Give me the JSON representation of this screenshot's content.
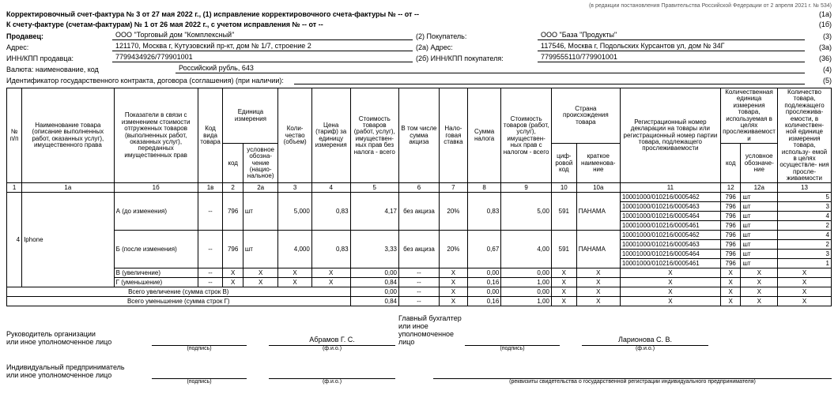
{
  "topnote": "(в редакции постановления Правительства Российской Федерации от 2 апреля 2021 г. № 534)",
  "title_line1_a": "Корректировочный счет-фактура № 3 от 27 мая 2022 г., (1) исправление корректировочного счета-фактуры № -- от --",
  "title_line1_num": "(1а)",
  "title_line2_a": "К счету-фактуре (счетам-фактурам) № 1 от 26 мая 2022 г., с учетом исправления № -- от --",
  "title_line2_num": "(1б)",
  "seller": {
    "label": "Продавец:",
    "name": "ООО \"Торговый дом \"Комплексный\"",
    "addr_label": "Адрес:",
    "addr": "121170, Москва г, Кутузовский пр-кт, дом № 1/7, строение 2",
    "inn_label": "ИНН/КПП продавца:",
    "inn": "7799434926/779901001"
  },
  "buyer": {
    "label": "(2)  Покупатель:",
    "name": "ООО \"База \"Продукты\"",
    "addr_label": "(2а) Адрес:",
    "addr": "117546, Москва г, Подольских Курсантов ул, дом № 34Г",
    "inn_label": "(2б) ИНН/КПП покупателя:",
    "inn": "7799555110/779901001"
  },
  "nums": {
    "seller": "(2)",
    "seller_addr": "(2а)",
    "seller_inn": "(2б)",
    "n3": "(3)",
    "n3a": "(3а)",
    "n36": "(36)",
    "n4": "(4)",
    "n5": "(5)"
  },
  "currency": {
    "label": "Валюта: наименование, код",
    "val": "Российский рубль, 643"
  },
  "contract": {
    "label": "Идентификатор государственного контракта, договора (соглашения) (при наличии):",
    "val": ""
  },
  "head": {
    "c1": "№\nп/п",
    "c1a": "Наименование товара (описание выполненных работ, оказанных услуг), имущественного права",
    "c1b": "Показатели в связи с изменением стоимости отгруженных товаров (выполненных работ, оказанных услуг), переданных имущественных прав",
    "c1v": "Код вида товара",
    "unit_grp": "Единица измерения",
    "c2": "код",
    "c2a": "условное обозна-\nчение (нацио-\nнальное)",
    "c3": "Коли-\nчество (объем)",
    "c4": "Цена (тариф) за единицу измерения",
    "c5": "Стоимость товаров (работ, услуг), имуществен-\nных прав без налога - всего",
    "c6": "В том числе сумма акциза",
    "c7": "Нало-\nговая ставка",
    "c8": "Сумма налога",
    "c9": "Стоимость товаров (работ, услуг), имуществен-\nных прав с налогом - всего",
    "country_grp": "Страна происхождения товара",
    "c10": "циф-\nровой код",
    "c10a": "краткое наименова-\nние",
    "c11": "Регистрационный номер декларации на товары или регистрационный номер партии товара, подлежащего прослеживаемости",
    "qunit_grp": "Количественная единица измерения товара, используемая в целях прослеживаемости",
    "c12": "код",
    "c12a": "условное обозначе-\nние",
    "c13": "Количество товара, подлежащего прослежива-\nемости, в количествен-\nной единице измерения товара, использу-\nемой в целях осуществле-\nния просле-\nживаемости"
  },
  "colnums": [
    "1",
    "1а",
    "1б",
    "1в",
    "2",
    "2а",
    "3",
    "4",
    "5",
    "6",
    "7",
    "8",
    "9",
    "10",
    "10а",
    "11",
    "12",
    "12а",
    "13"
  ],
  "rows": [
    {
      "n": "4",
      "name": "Iphone",
      "ind": "А (до изменения)",
      "kvt": "--",
      "kod": "796",
      "unit": "шт",
      "qty": "5,000",
      "price": "0,83",
      "cost": "4,17",
      "excise": "без акциза",
      "rate": "20%",
      "tax": "0,83",
      "total": "5,00",
      "ccode": "591",
      "cname": "ПАНАМА",
      "decl": [
        {
          "d": "10001000/010216/0005462",
          "uk": "796",
          "un": "шт",
          "q": "5"
        },
        {
          "d": "10001000/010216/0005463",
          "uk": "796",
          "un": "шт",
          "q": "3"
        },
        {
          "d": "10001000/010216/0005464",
          "uk": "796",
          "un": "шт",
          "q": "4"
        },
        {
          "d": "10001000/010216/0005461",
          "uk": "796",
          "un": "шт",
          "q": "2"
        }
      ]
    },
    {
      "n": "",
      "name": "",
      "ind": "Б (после изменения)",
      "kvt": "--",
      "kod": "796",
      "unit": "шт",
      "qty": "4,000",
      "price": "0,83",
      "cost": "3,33",
      "excise": "без акциза",
      "rate": "20%",
      "tax": "0,67",
      "total": "4,00",
      "ccode": "591",
      "cname": "ПАНАМА",
      "decl": [
        {
          "d": "10001000/010216/0005462",
          "uk": "796",
          "un": "шт",
          "q": "4"
        },
        {
          "d": "10001000/010216/0005463",
          "uk": "796",
          "un": "шт",
          "q": "2"
        },
        {
          "d": "10001000/010216/0005464",
          "uk": "796",
          "un": "шт",
          "q": "3"
        },
        {
          "d": "10001000/010216/0005461",
          "uk": "796",
          "un": "шт",
          "q": "1"
        }
      ]
    }
  ],
  "deltaRows": [
    {
      "ind": "В (увеличение)",
      "kvt": "--",
      "kod": "Х",
      "unit": "Х",
      "qty": "Х",
      "price": "Х",
      "cost": "0,00",
      "excise": "--",
      "rate": "Х",
      "tax": "0,00",
      "total": "0,00",
      "ccode": "Х",
      "cname": "Х",
      "d": "Х",
      "uk": "Х",
      "un": "Х",
      "q": "Х"
    },
    {
      "ind": "Г (уменьшение)",
      "kvt": "--",
      "kod": "Х",
      "unit": "Х",
      "qty": "Х",
      "price": "Х",
      "cost": "0,84",
      "excise": "--",
      "rate": "Х",
      "tax": "0,16",
      "total": "1,00",
      "ccode": "Х",
      "cname": "Х",
      "d": "Х",
      "uk": "Х",
      "un": "Х",
      "q": "Х"
    }
  ],
  "totals": [
    {
      "label": "Всего увеличение (сумма строк В)",
      "cost": "0,00",
      "excise": "--",
      "rate": "Х",
      "tax": "0,00",
      "total": "0,00",
      "rest": "Х"
    },
    {
      "label": "Всего уменьшение (сумма строк Г)",
      "cost": "0,84",
      "excise": "--",
      "rate": "Х",
      "tax": "0,16",
      "total": "1,00",
      "rest": "Х"
    }
  ],
  "sign": {
    "head_lbl": "Руководитель организации\nили иное уполномоченное лицо",
    "acc_lbl": "Главный бухгалтер\nили иное уполномоченное лицо",
    "ip_lbl": "Индивидуальный предприниматель\nили иное уполномоченное лицо",
    "head_name": "Абрамов Г. С.",
    "acc_name": "Ларионова С. В.",
    "sub_sign": "(подпись)",
    "sub_fio": "(ф.и.о.)",
    "sub_rekv": "(реквизиты свидетельства о государственной регистрации индивидуального предпринимателя)"
  }
}
